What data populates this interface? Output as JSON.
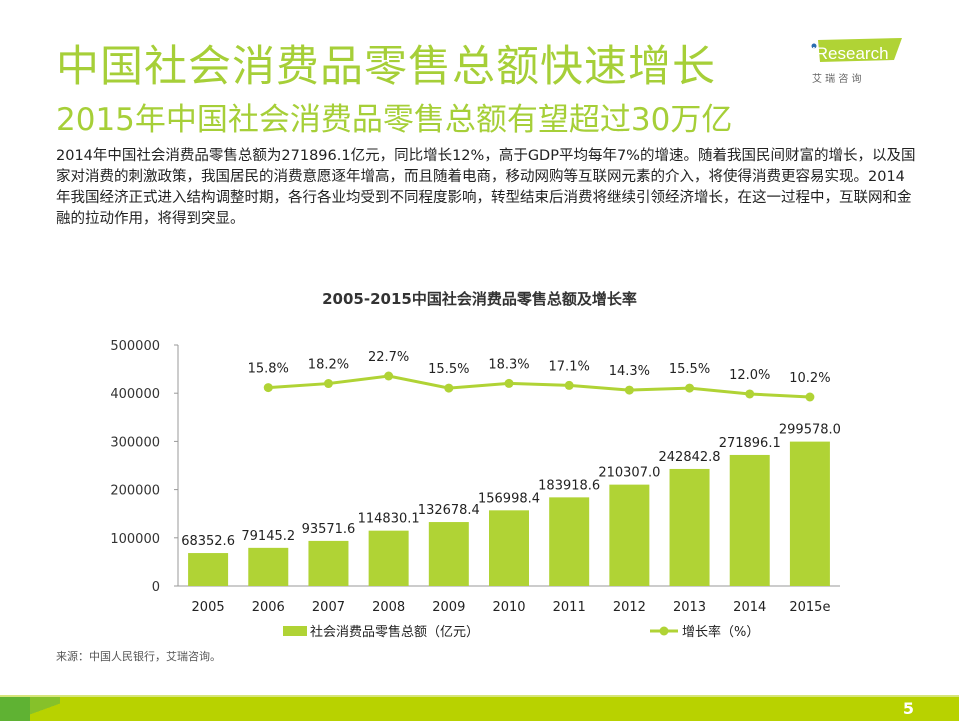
{
  "header": {
    "title": "中国社会消费品零售总额快速增长",
    "subtitle": "2015年中国社会消费品零售总额有望超过30万亿",
    "body": "2014年中国社会消费品零售总额为271896.1亿元，同比增长12%，高于GDP平均每年7%的增速。随着我国民间财富的增长，以及国家对消费的刺激政策，我国居民的消费意愿逐年增高，而且随着电商，移动网购等互联网元素的介入，将使得消费更容易实现。2014年我国经济正式进入结构调整时期，各行各业均受到不同程度影响，转型结束后消费将继续引领经济增长，在这一过程中，互联网和金融的拉动作用，将得到突显。"
  },
  "logo": {
    "brand": "iResearch",
    "cn": "艾 瑞 咨 询"
  },
  "chart_data": {
    "type": "bar+line",
    "title": "2005-2015中国社会消费品零售总额及增长率",
    "categories": [
      "2005",
      "2006",
      "2007",
      "2008",
      "2009",
      "2010",
      "2011",
      "2012",
      "2013",
      "2014",
      "2015e"
    ],
    "yticks": [
      "0",
      "100000",
      "200000",
      "300000",
      "400000",
      "500000"
    ],
    "ylim": [
      0,
      500000
    ],
    "series": [
      {
        "name": "社会消费品零售总额（亿元）",
        "type": "bar",
        "color": "#b0d335",
        "values": [
          68352.6,
          79145.2,
          93571.6,
          114830.1,
          132678.4,
          156998.4,
          183918.6,
          210307.0,
          242842.8,
          271896.1,
          299578.0
        ],
        "labels": [
          "68352.6",
          "79145.2",
          "93571.6",
          "114830.1",
          "132678.4",
          "156998.4",
          "183918.6",
          "210307.0",
          "242842.8",
          "271896.1",
          "299578.0"
        ]
      },
      {
        "name": "增长率（%）",
        "type": "line",
        "color": "#b0d335",
        "values": [
          null,
          15.8,
          18.2,
          22.7,
          15.5,
          18.3,
          17.1,
          14.3,
          15.5,
          12.0,
          10.2
        ],
        "labels": [
          null,
          "15.8%",
          "18.2%",
          "22.7%",
          "15.5%",
          "18.3%",
          "17.1%",
          "14.3%",
          "15.5%",
          "12.0%",
          "10.2%"
        ]
      }
    ],
    "legend": "bottom"
  },
  "source": "来源：中国人民银行，艾瑞咨询。",
  "page": "5"
}
